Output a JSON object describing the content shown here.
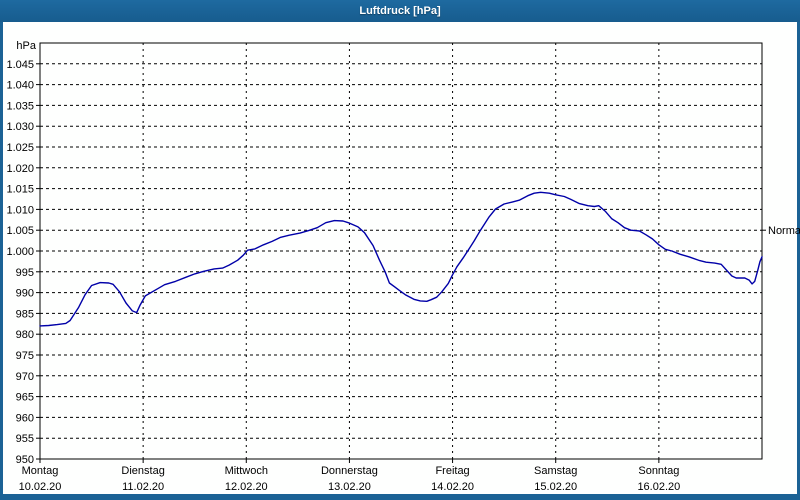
{
  "window": {
    "title": "Luftdruck [hPa]"
  },
  "colors": {
    "titlebar": "#1B6295",
    "window_border": "#1B6295",
    "plot_background": "#FEFFFE",
    "grid": "#000000",
    "axis_text": "#000000",
    "line": "#0000A8"
  },
  "chart_data": {
    "type": "line",
    "title": "Luftdruck [hPa]",
    "ylabel": "hPa",
    "ylim": [
      950,
      1050
    ],
    "y_ticks": [
      950,
      955,
      960,
      965,
      970,
      975,
      980,
      985,
      990,
      995,
      1000,
      1005,
      1010,
      1015,
      1020,
      1025,
      1030,
      1035,
      1040,
      1045
    ],
    "y_tick_format": "german-thousands-dot",
    "x_hours_range": [
      0,
      168
    ],
    "grid": "dashed",
    "legend_position": "none",
    "x_days": [
      {
        "name": "Montag",
        "date": "10.02.20"
      },
      {
        "name": "Dienstag",
        "date": "11.02.20"
      },
      {
        "name": "Mittwoch",
        "date": "12.02.20"
      },
      {
        "name": "Donnerstag",
        "date": "13.02.20"
      },
      {
        "name": "Freitag",
        "date": "14.02.20"
      },
      {
        "name": "Samstag",
        "date": "15.02.20"
      },
      {
        "name": "Sonntag",
        "date": "16.02.20"
      }
    ],
    "annotations": [
      {
        "label": "Normal",
        "value": 1005
      }
    ],
    "series": [
      {
        "name": "Luftdruck",
        "color": "#0000A8",
        "points": [
          [
            0,
            982.0
          ],
          [
            2,
            982.1
          ],
          [
            4,
            982.3
          ],
          [
            6,
            982.6
          ],
          [
            7,
            983.3
          ],
          [
            9,
            986.5
          ],
          [
            10.5,
            989.5
          ],
          [
            12,
            991.7
          ],
          [
            14,
            992.4
          ],
          [
            16,
            992.3
          ],
          [
            17,
            992.0
          ],
          [
            18.5,
            990.2
          ],
          [
            20,
            987.5
          ],
          [
            21.5,
            985.6
          ],
          [
            22.5,
            985.2
          ],
          [
            23.3,
            987.0
          ],
          [
            24.5,
            989.2
          ],
          [
            27,
            990.7
          ],
          [
            29,
            991.9
          ],
          [
            31.5,
            992.7
          ],
          [
            34,
            993.7
          ],
          [
            36,
            994.5
          ],
          [
            38,
            995.1
          ],
          [
            40.5,
            995.7
          ],
          [
            42.5,
            995.9
          ],
          [
            44,
            996.6
          ],
          [
            46,
            997.8
          ],
          [
            47.3,
            999.0
          ],
          [
            48.3,
            1000.2
          ],
          [
            50,
            1000.5
          ],
          [
            52,
            1001.5
          ],
          [
            54,
            1002.3
          ],
          [
            56,
            1003.3
          ],
          [
            58,
            1003.8
          ],
          [
            60.5,
            1004.3
          ],
          [
            62.5,
            1004.9
          ],
          [
            64.5,
            1005.6
          ],
          [
            66.5,
            1006.8
          ],
          [
            68.5,
            1007.3
          ],
          [
            70.5,
            1007.2
          ],
          [
            72,
            1006.7
          ],
          [
            74,
            1005.8
          ],
          [
            75.5,
            1004.4
          ],
          [
            77.5,
            1001.3
          ],
          [
            79,
            997.8
          ],
          [
            80.3,
            995.0
          ],
          [
            81.3,
            992.3
          ],
          [
            82.5,
            991.4
          ],
          [
            83.5,
            990.6
          ],
          [
            85,
            989.5
          ],
          [
            87,
            988.4
          ],
          [
            88.5,
            988.0
          ],
          [
            90,
            987.9
          ],
          [
            91,
            988.3
          ],
          [
            92.3,
            988.9
          ],
          [
            93.5,
            990.2
          ],
          [
            95,
            992.2
          ],
          [
            96,
            994.3
          ],
          [
            97,
            996.2
          ],
          [
            98.5,
            998.4
          ],
          [
            100,
            1000.8
          ],
          [
            101,
            1002.4
          ],
          [
            102.5,
            1005.0
          ],
          [
            104.5,
            1008.2
          ],
          [
            106,
            1010.1
          ],
          [
            108,
            1011.3
          ],
          [
            110,
            1011.8
          ],
          [
            111.5,
            1012.2
          ],
          [
            113.5,
            1013.3
          ],
          [
            115,
            1013.9
          ],
          [
            116.5,
            1014.1
          ],
          [
            118.5,
            1013.9
          ],
          [
            120,
            1013.5
          ],
          [
            122,
            1013.1
          ],
          [
            123.5,
            1012.4
          ],
          [
            125.5,
            1011.4
          ],
          [
            127.5,
            1010.9
          ],
          [
            129,
            1010.7
          ],
          [
            130,
            1010.9
          ],
          [
            131.5,
            1009.6
          ],
          [
            133,
            1007.8
          ],
          [
            134.5,
            1006.8
          ],
          [
            136,
            1005.6
          ],
          [
            137.5,
            1005.0
          ],
          [
            139.5,
            1004.8
          ],
          [
            141,
            1003.9
          ],
          [
            142.5,
            1002.9
          ],
          [
            144,
            1001.5
          ],
          [
            145.5,
            1000.4
          ],
          [
            147,
            1000.0
          ],
          [
            149,
            999.2
          ],
          [
            151,
            998.6
          ],
          [
            153.5,
            997.7
          ],
          [
            155,
            997.3
          ],
          [
            157,
            997.1
          ],
          [
            158.5,
            996.8
          ],
          [
            160,
            995.1
          ],
          [
            161,
            994.0
          ],
          [
            162,
            993.5
          ],
          [
            164,
            993.5
          ],
          [
            165,
            993.0
          ],
          [
            165.7,
            992.1
          ],
          [
            166.3,
            992.7
          ],
          [
            167,
            995.3
          ],
          [
            167.5,
            997.4
          ],
          [
            168,
            998.6
          ]
        ]
      }
    ]
  }
}
